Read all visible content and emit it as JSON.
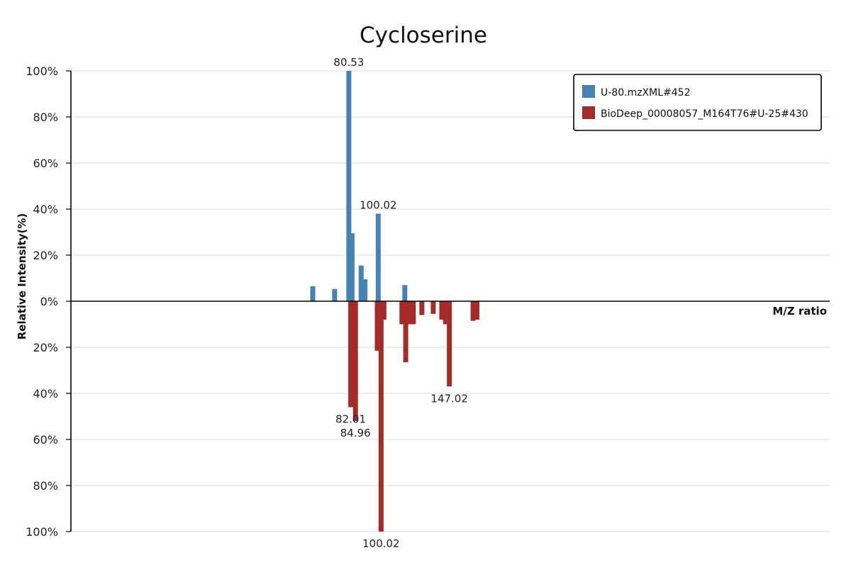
{
  "chart_data": {
    "type": "bar",
    "title": "Cycloserine",
    "xlabel": "M/Z ratio",
    "ylabel": "Relative Intensity(%)",
    "ylim": [
      -100,
      100
    ],
    "xlim": [
      0,
      400
    ],
    "y_ticks": [
      {
        "value": 100,
        "label": "100%"
      },
      {
        "value": 80,
        "label": "80%"
      },
      {
        "value": 60,
        "label": "60%"
      },
      {
        "value": 40,
        "label": "40%"
      },
      {
        "value": 20,
        "label": "20%"
      },
      {
        "value": 0,
        "label": "0%"
      },
      {
        "value": -20,
        "label": "20%"
      },
      {
        "value": -40,
        "label": "40%"
      },
      {
        "value": -60,
        "label": "60%"
      },
      {
        "value": -80,
        "label": "80%"
      },
      {
        "value": -100,
        "label": "100%"
      }
    ],
    "legend_position": "top-right",
    "series": [
      {
        "name": "U-80.mzXML#452",
        "color": "#4682b4",
        "direction": "up",
        "peaks": [
          {
            "mz": 127.5,
            "intensity": 6.5
          },
          {
            "mz": 139.0,
            "intensity": 5.3
          },
          {
            "mz": 146.5,
            "intensity": 100
          },
          {
            "mz": 148.2,
            "intensity": 29.5
          },
          {
            "mz": 153.0,
            "intensity": 15.5
          },
          {
            "mz": 155.0,
            "intensity": 9.5
          },
          {
            "mz": 162.0,
            "intensity": 38
          },
          {
            "mz": 176.0,
            "intensity": 7
          }
        ],
        "labels": [
          {
            "text": "80.53",
            "mz": 146.5,
            "intensity": 100
          },
          {
            "text": "100.02",
            "mz": 162.0,
            "intensity": 38
          }
        ]
      },
      {
        "name": "BioDeep_00008057_M164T76#U-25#430",
        "color": "#a52a2a",
        "direction": "down",
        "peaks": [
          {
            "mz": 147.5,
            "intensity": 46
          },
          {
            "mz": 150.0,
            "intensity": 52
          },
          {
            "mz": 161.5,
            "intensity": 21.5
          },
          {
            "mz": 163.5,
            "intensity": 100
          },
          {
            "mz": 165.0,
            "intensity": 8
          },
          {
            "mz": 174.5,
            "intensity": 10
          },
          {
            "mz": 176.5,
            "intensity": 26.5
          },
          {
            "mz": 178.5,
            "intensity": 10
          },
          {
            "mz": 180.5,
            "intensity": 10
          },
          {
            "mz": 185.0,
            "intensity": 6
          },
          {
            "mz": 191.0,
            "intensity": 5.5
          },
          {
            "mz": 195.5,
            "intensity": 8
          },
          {
            "mz": 197.5,
            "intensity": 10
          },
          {
            "mz": 199.5,
            "intensity": 37
          },
          {
            "mz": 212.0,
            "intensity": 8.5
          },
          {
            "mz": 214.0,
            "intensity": 8
          }
        ],
        "labels": [
          {
            "text": "82.01",
            "mz": 147.5,
            "intensity": 46
          },
          {
            "text": "84.96",
            "mz": 150.0,
            "intensity": 52
          },
          {
            "text": "147.02",
            "mz": 199.5,
            "intensity": 37
          },
          {
            "text": "100.02",
            "mz": 163.5,
            "intensity": 100
          }
        ]
      }
    ]
  }
}
